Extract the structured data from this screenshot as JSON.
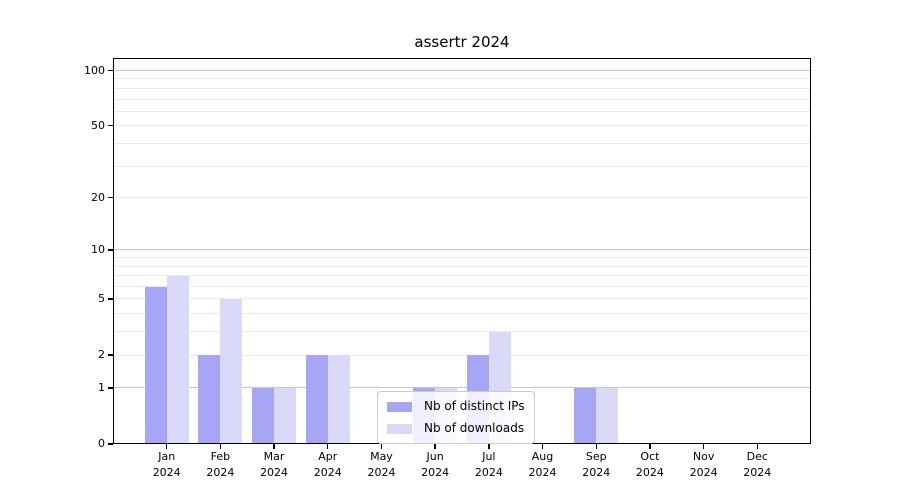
{
  "title": "assertr 2024",
  "chart_data": {
    "type": "bar",
    "title": "assertr 2024",
    "categories": [
      "Jan",
      "Feb",
      "Mar",
      "Apr",
      "May",
      "Jun",
      "Jul",
      "Aug",
      "Sep",
      "Oct",
      "Nov",
      "Dec"
    ],
    "x_tick_year": "2024",
    "series": [
      {
        "name": "Nb of distinct IPs",
        "color": "#a6a6f4",
        "values": [
          6,
          2,
          1,
          2,
          0,
          1,
          2,
          0,
          1,
          0,
          0,
          0
        ]
      },
      {
        "name": "Nb of downloads",
        "color": "#dadaf8",
        "values": [
          7,
          5,
          1,
          2,
          0,
          1,
          3,
          0,
          1,
          0,
          0,
          0
        ]
      }
    ],
    "yscale": "log1p",
    "ylim": [
      0,
      117
    ],
    "yticks_labeled": [
      0,
      1,
      2,
      5,
      10,
      20,
      50,
      100
    ],
    "yticks_major_grid": [
      1,
      10,
      100
    ],
    "yticks_minor_grid": [
      2,
      3,
      4,
      5,
      6,
      7,
      8,
      9,
      20,
      30,
      40,
      50,
      60,
      70,
      80,
      90
    ],
    "grid": "horizontal-only",
    "legend_position": "lower center"
  },
  "colors": {
    "background": "#ffffff",
    "axis": "#000000",
    "text": "#000000",
    "grid_major": "#c9c9c9",
    "grid_minor": "#ececec",
    "legend_border": "#cccccc"
  }
}
